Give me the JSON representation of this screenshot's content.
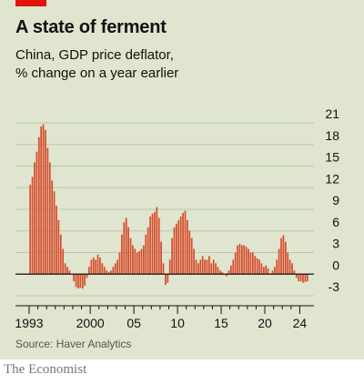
{
  "header": {
    "title": "A state of ferment",
    "subtitle_line1": "China, GDP price deflator,",
    "subtitle_line2": "% change on a year earlier"
  },
  "footer": {
    "source": "Source: Haver Analytics",
    "brand": "The Economist"
  },
  "colors": {
    "bar": "#d64a2a",
    "background": "#dfe5cf",
    "accent": "#e3120b",
    "grid": "#bfc6ad"
  },
  "chart_data": {
    "type": "bar",
    "frequency": "quarterly",
    "x_start": "1993",
    "x_tick_labels": [
      "1993",
      "2000",
      "05",
      "10",
      "15",
      "20",
      "24"
    ],
    "x_tick_years": [
      1993,
      2000,
      2005,
      2010,
      2015,
      2020,
      2024
    ],
    "y_tick_labels": [
      "21",
      "18",
      "15",
      "12",
      "9",
      "6",
      "3",
      "0",
      "-3"
    ],
    "ylim": [
      -3,
      21
    ],
    "y_axis_side": "right",
    "grid": true,
    "values": [
      12.4,
      13.5,
      15.5,
      17.0,
      19.0,
      20.5,
      20.8,
      20.0,
      17.5,
      15.5,
      13.0,
      11.5,
      9.5,
      7.5,
      5.5,
      3.5,
      1.5,
      1.0,
      0.5,
      0.0,
      -1.0,
      -1.8,
      -2.0,
      -1.9,
      -2.0,
      -1.6,
      -0.5,
      1.0,
      2.0,
      2.3,
      2.0,
      2.7,
      2.3,
      1.5,
      1.0,
      0.5,
      0.3,
      0.5,
      1.0,
      1.5,
      2.0,
      3.0,
      5.5,
      7.2,
      7.8,
      6.5,
      5.0,
      4.0,
      3.5,
      3.0,
      3.2,
      3.5,
      4.0,
      5.5,
      6.5,
      8.0,
      8.4,
      8.6,
      9.3,
      7.8,
      4.5,
      1.5,
      -1.5,
      -1.2,
      2.0,
      5.0,
      6.5,
      7.0,
      7.5,
      8.0,
      8.5,
      8.8,
      7.5,
      6.0,
      5.0,
      3.5,
      2.0,
      1.5,
      2.0,
      2.5,
      2.0,
      2.0,
      2.5,
      1.5,
      2.0,
      1.5,
      1.0,
      0.5,
      0.3,
      0.0,
      -0.3,
      0.5,
      1.2,
      2.0,
      3.0,
      4.0,
      4.2,
      4.0,
      4.0,
      3.8,
      3.5,
      3.0,
      3.0,
      2.5,
      2.2,
      2.0,
      1.5,
      1.0,
      1.2,
      0.8,
      0.0,
      0.5,
      1.0,
      2.0,
      3.5,
      5.0,
      5.4,
      4.5,
      3.0,
      2.0,
      1.5,
      0.5,
      -0.5,
      -1.0,
      -1.0,
      -1.2,
      -1.1,
      -1.0
    ]
  }
}
